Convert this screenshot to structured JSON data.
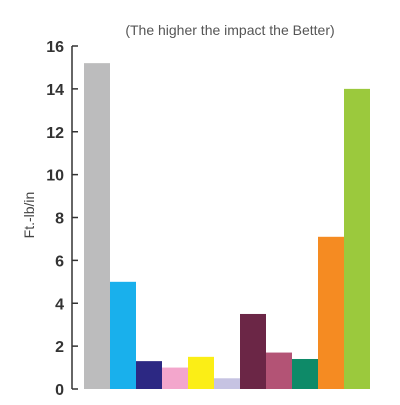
{
  "chart_data": {
    "type": "bar",
    "title": "",
    "subtitle": "(The higher the impact the Better)",
    "xlabel": "",
    "ylabel": "Ft.-lb/in",
    "ylim": [
      0,
      16
    ],
    "yticks": [
      0,
      2,
      4,
      6,
      8,
      10,
      12,
      14,
      16
    ],
    "grid": false,
    "legend": "none",
    "values": [
      15.2,
      5.0,
      1.3,
      1.0,
      1.5,
      0.5,
      3.5,
      1.7,
      1.4,
      7.1,
      14.0
    ],
    "colors": [
      "#bcbcbd",
      "#19b0ec",
      "#2c2883",
      "#f3a6cc",
      "#fbee16",
      "#c6c3e2",
      "#6b2646",
      "#b35375",
      "#0e8a68",
      "#f58b22",
      "#9bc93d"
    ]
  }
}
